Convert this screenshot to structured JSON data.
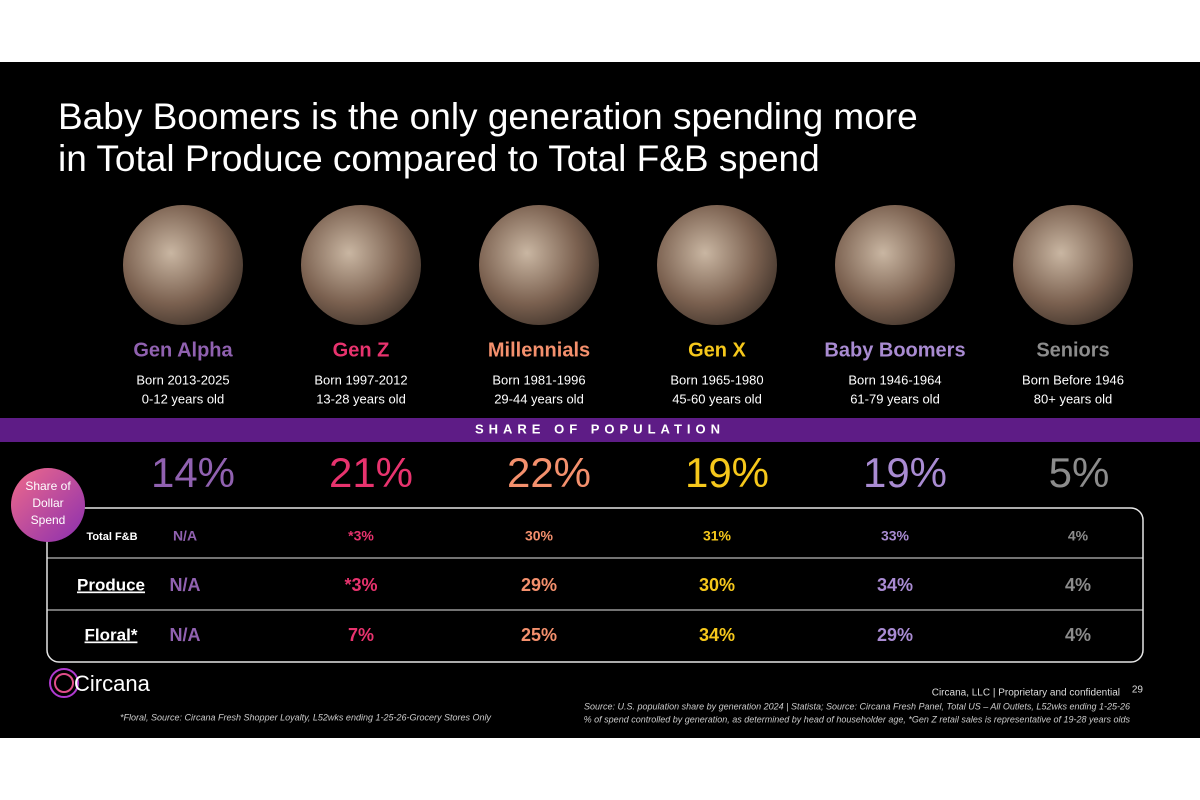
{
  "title": [
    "Baby Boomers is the only generation spending more",
    "in Total Produce compared to Total F&B spend"
  ],
  "generations": [
    {
      "name": "Gen Alpha",
      "born": "Born 2013-2025",
      "age": "0-12 years old",
      "population_share": "14%",
      "color": "#9061b0"
    },
    {
      "name": "Gen Z",
      "born": "Born 1997-2012",
      "age": "13-28 years old",
      "population_share": "21%",
      "color": "#e8336e"
    },
    {
      "name": "Millennials",
      "born": "Born 1981-1996",
      "age": "29-44 years old",
      "population_share": "22%",
      "color": "#f4906d"
    },
    {
      "name": "Gen X",
      "born": "Born 1965-1980",
      "age": "45-60 years old",
      "population_share": "19%",
      "color": "#f6c81b"
    },
    {
      "name": "Baby Boomers",
      "born": "Born 1946-1964",
      "age": "61-79 years old",
      "population_share": "19%",
      "color": "#a98bd2"
    },
    {
      "name": "Seniors",
      "born": "Born Before 1946",
      "age": "80+ years old",
      "population_share": "5%",
      "color": "#8c8c8c"
    }
  ],
  "band_label": "SHARE OF POPULATION",
  "badge": [
    "Share of",
    "Dollar",
    "Spend"
  ],
  "table": {
    "rows": [
      {
        "label": "Total F&B",
        "values": [
          "N/A",
          "*3%",
          "30%",
          "31%",
          "33%",
          "4%"
        ]
      },
      {
        "label": "Produce",
        "values": [
          "N/A",
          "*3%",
          "29%",
          "30%",
          "34%",
          "4%"
        ]
      },
      {
        "label": "Floral*",
        "values": [
          "N/A",
          "7%",
          "25%",
          "34%",
          "29%",
          "4%"
        ]
      }
    ]
  },
  "footer": {
    "logo": "Circana",
    "confidential": "Circana, LLC |  Proprietary and confidential",
    "page": "29",
    "footnote": "*Floral, Source: Circana Fresh Shopper Loyalty, L52wks ending 1-25-26-Grocery Stores Only",
    "sources": [
      "Source: U.S. population share by generation 2024 | Statista; Source: Circana Fresh Panel, Total US – All Outlets, L52wks ending 1-25-26",
      "% of spend controlled by generation, as determined by head of householder age, *Gen Z retail sales is representative of 19-28 years olds"
    ]
  }
}
